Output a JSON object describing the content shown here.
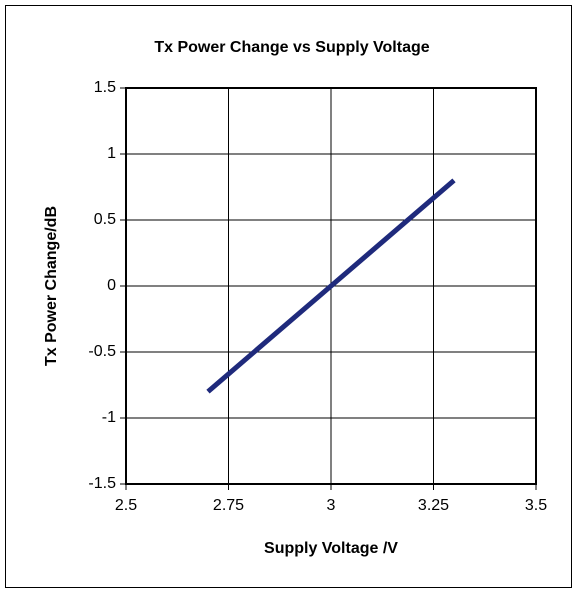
{
  "chart_data": {
    "type": "line",
    "title": "Tx Power Change vs Supply Voltage",
    "x_label": "Supply Voltage /V",
    "y_label": "Tx Power Change/dB",
    "x": [
      2.7,
      3,
      3.3
    ],
    "series": [
      {
        "name": "Tx Power Change",
        "color": "#1f2a7c",
        "values": [
          -0.8,
          0,
          0.8
        ]
      }
    ],
    "xlim": [
      2.5,
      3.5
    ],
    "xticks": [
      2.5,
      2.75,
      3,
      3.25,
      3.5
    ],
    "ylim": [
      -1.5,
      1.5
    ],
    "yticks": [
      -1.5,
      -1,
      -0.5,
      0,
      0.5,
      1,
      1.5
    ],
    "grid": true
  }
}
